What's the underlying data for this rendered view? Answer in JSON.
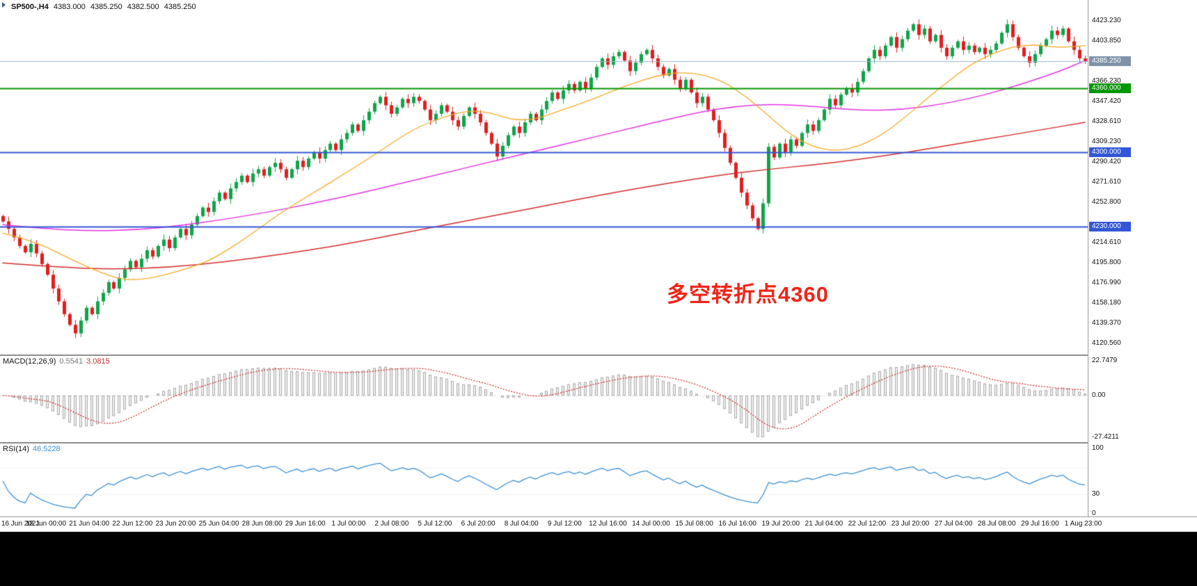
{
  "header": {
    "symbol_timeframe": "SP500-,H4",
    "open": "4383.000",
    "high": "4385.250",
    "low": "4382.500",
    "close": "4385.250"
  },
  "colors": {
    "candle_up": "#10a54a",
    "candle_down": "#e01f1f",
    "ma_fast": "#f7a928",
    "ma_mid": "#e332e3",
    "ma_slow": "#d42a2a",
    "macd_fill": "#f1f1f1",
    "macd_stroke": "#a8a8a8",
    "macd_signal": "#d02020",
    "rsi_line": "#3b8fd6",
    "annotation_red": "#f02418",
    "axis_border": "#9a9a9a",
    "current_price_line": "#9cb6ce"
  },
  "chart_data": {
    "type": "candlestick",
    "symbol": "SP500-",
    "timeframe": "H4",
    "title_ohlc": {
      "open": 4383.0,
      "high": 4385.25,
      "low": 4382.5,
      "close": 4385.25
    },
    "x_labels": [
      "16 Jun 2021",
      "18 Jun 00:00",
      "21 Jun 04:00",
      "22 Jun 12:00",
      "23 Jun 20:00",
      "25 Jun 04:00",
      "28 Jun 08:00",
      "29 Jun 16:00",
      "1 Jul 00:00",
      "2 Jul 08:00",
      "5 Jul 12:00",
      "6 Jul 20:00",
      "8 Jul 04:00",
      "9 Jul 12:00",
      "12 Jul 16:00",
      "14 Jul 00:00",
      "15 Jul 08:00",
      "16 Jul 16:00",
      "19 Jul 20:00",
      "21 Jul 04:00",
      "22 Jul 12:00",
      "23 Jul 20:00",
      "27 Jul 04:00",
      "28 Jul 08:00",
      "29 Jul 16:00",
      "1 Aug 23:00"
    ],
    "price_axis": {
      "top_price": 4423.23,
      "bottom_price": 4120.56,
      "ticks": [
        "4423.230",
        "4403.850",
        "",
        "4366.230",
        "4347.420",
        "4328.610",
        "4309.230",
        "4290.420",
        "4271.610",
        "4252.800",
        "",
        "4214.610",
        "4195.800",
        "4176.990",
        "4158.180",
        "4139.370",
        "4120.560"
      ]
    },
    "candles": {
      "first_open": 4240,
      "closes": [
        4235,
        4228,
        4220,
        4212,
        4206,
        4214,
        4205,
        4195,
        4185,
        4172,
        4160,
        4148,
        4138,
        4130,
        4142,
        4154,
        4148,
        4160,
        4168,
        4178,
        4172,
        4182,
        4190,
        4198,
        4192,
        4200,
        4208,
        4202,
        4212,
        4218,
        4210,
        4220,
        4228,
        4222,
        4232,
        4240,
        4248,
        4244,
        4254,
        4262,
        4256,
        4266,
        4272,
        4278,
        4272,
        4280,
        4284,
        4278,
        4286,
        4290,
        4284,
        4276,
        4284,
        4292,
        4286,
        4294,
        4300,
        4294,
        4302,
        4308,
        4302,
        4312,
        4318,
        4326,
        4320,
        4330,
        4338,
        4346,
        4352,
        4344,
        4336,
        4342,
        4350,
        4346,
        4352,
        4348,
        4340,
        4330,
        4336,
        4344,
        4338,
        4330,
        4324,
        4334,
        4342,
        4336,
        4328,
        4318,
        4308,
        4296,
        4306,
        4316,
        4324,
        4318,
        4328,
        4336,
        4330,
        4340,
        4348,
        4356,
        4350,
        4358,
        4364,
        4358,
        4366,
        4360,
        4370,
        4380,
        4388,
        4382,
        4390,
        4394,
        4386,
        4376,
        4384,
        4392,
        4396,
        4388,
        4380,
        4372,
        4378,
        4368,
        4360,
        4368,
        4356,
        4346,
        4352,
        4340,
        4330,
        4318,
        4304,
        4290,
        4276,
        4262,
        4250,
        4238,
        4228,
        4252,
        4305,
        4295,
        4308,
        4300,
        4312,
        4306,
        4318,
        4326,
        4320,
        4330,
        4340,
        4350,
        4344,
        4354,
        4360,
        4356,
        4366,
        4376,
        4388,
        4396,
        4390,
        4400,
        4408,
        4398,
        4406,
        4414,
        4420,
        4410,
        4416,
        4404,
        4410,
        4398,
        4390,
        4398,
        4404,
        4396,
        4400,
        4394,
        4398,
        4392,
        4396,
        4402,
        4412,
        4420,
        4408,
        4398,
        4390,
        4384,
        4392,
        4400,
        4406,
        4414,
        4410,
        4416,
        4404,
        4396,
        4388,
        4385.25
      ]
    },
    "overlays": {
      "ma_fast": {
        "name": "fast-ma-orange",
        "points": [
          [
            0,
            4224
          ],
          [
            6,
            4216
          ],
          [
            12,
            4200
          ],
          [
            18,
            4186
          ],
          [
            22,
            4180
          ],
          [
            26,
            4181
          ],
          [
            30,
            4186
          ],
          [
            34,
            4192
          ],
          [
            38,
            4200
          ],
          [
            44,
            4220
          ],
          [
            50,
            4243
          ],
          [
            56,
            4262
          ],
          [
            62,
            4281
          ],
          [
            68,
            4301
          ],
          [
            74,
            4322
          ],
          [
            80,
            4334
          ],
          [
            84,
            4339
          ],
          [
            88,
            4337
          ],
          [
            92,
            4330
          ],
          [
            96,
            4331
          ],
          [
            100,
            4338
          ],
          [
            106,
            4349
          ],
          [
            112,
            4362
          ],
          [
            118,
            4372
          ],
          [
            122,
            4375
          ],
          [
            126,
            4373
          ],
          [
            130,
            4366
          ],
          [
            134,
            4352
          ],
          [
            138,
            4334
          ],
          [
            142,
            4316
          ],
          [
            146,
            4305
          ],
          [
            150,
            4301
          ],
          [
            154,
            4305
          ],
          [
            158,
            4315
          ],
          [
            162,
            4330
          ],
          [
            166,
            4348
          ],
          [
            170,
            4365
          ],
          [
            174,
            4381
          ],
          [
            178,
            4392
          ],
          [
            182,
            4399
          ],
          [
            186,
            4401
          ],
          [
            190,
            4398
          ],
          [
            195,
            4400
          ]
        ]
      },
      "ma_mid": {
        "name": "mid-ma-magenta",
        "points": [
          [
            0,
            4232
          ],
          [
            8,
            4228
          ],
          [
            16,
            4226
          ],
          [
            24,
            4227
          ],
          [
            32,
            4231
          ],
          [
            40,
            4237
          ],
          [
            48,
            4244
          ],
          [
            56,
            4252
          ],
          [
            64,
            4261
          ],
          [
            72,
            4271
          ],
          [
            80,
            4281
          ],
          [
            88,
            4291
          ],
          [
            96,
            4301
          ],
          [
            104,
            4311
          ],
          [
            112,
            4321
          ],
          [
            120,
            4331
          ],
          [
            126,
            4338
          ],
          [
            132,
            4343
          ],
          [
            138,
            4345
          ],
          [
            144,
            4344
          ],
          [
            150,
            4341
          ],
          [
            156,
            4339
          ],
          [
            162,
            4340
          ],
          [
            168,
            4344
          ],
          [
            174,
            4350
          ],
          [
            180,
            4358
          ],
          [
            186,
            4368
          ],
          [
            191,
            4377
          ],
          [
            195,
            4386
          ]
        ]
      },
      "ma_slow": {
        "name": "slow-ma-red",
        "points": [
          [
            0,
            4196
          ],
          [
            10,
            4192
          ],
          [
            20,
            4190
          ],
          [
            30,
            4192
          ],
          [
            40,
            4197
          ],
          [
            50,
            4204
          ],
          [
            60,
            4212
          ],
          [
            70,
            4222
          ],
          [
            80,
            4232
          ],
          [
            90,
            4242
          ],
          [
            100,
            4252
          ],
          [
            110,
            4262
          ],
          [
            120,
            4271
          ],
          [
            130,
            4279
          ],
          [
            138,
            4284
          ],
          [
            146,
            4288
          ],
          [
            154,
            4293
          ],
          [
            162,
            4299
          ],
          [
            170,
            4306
          ],
          [
            178,
            4313
          ],
          [
            186,
            4320
          ],
          [
            195,
            4328
          ]
        ]
      }
    },
    "hlines": [
      {
        "type": "current-price",
        "price": 4385.25,
        "label": "4385.250",
        "color": "#9cb6ce",
        "badge": "#7e93a8",
        "width": 1
      },
      {
        "type": "level",
        "price": 4360.0,
        "label": "4360.000",
        "color": "#009600",
        "badge": "#009600",
        "width": 2
      },
      {
        "type": "level",
        "price": 4300.0,
        "label": "4300.000",
        "color": "#3257d6",
        "badge": "#3257d6",
        "width": 2
      },
      {
        "type": "level",
        "price": 4230.0,
        "label": "4230.000",
        "color": "#3257d6",
        "badge": "#3257d6",
        "width": 2
      }
    ],
    "annotation": {
      "text": "多空转折点4360",
      "color": "#f02418"
    },
    "indicators": [
      {
        "name_label": "MACD(12,26,9)",
        "type": "macd-histogram-with-signal",
        "value_main": "0.5541",
        "value_signal": "3.0815",
        "axis": [
          "22.7479",
          "0.00",
          "-27.4211"
        ],
        "axis_values": [
          22.7479,
          0,
          -27.4211
        ]
      },
      {
        "name_label": "RSI(14)",
        "type": "rsi-line",
        "value_main": "46.5228",
        "axis": [
          "100",
          "30",
          "0"
        ],
        "axis_values": [
          100,
          30,
          0
        ],
        "levels": [
          30,
          70
        ]
      }
    ]
  }
}
